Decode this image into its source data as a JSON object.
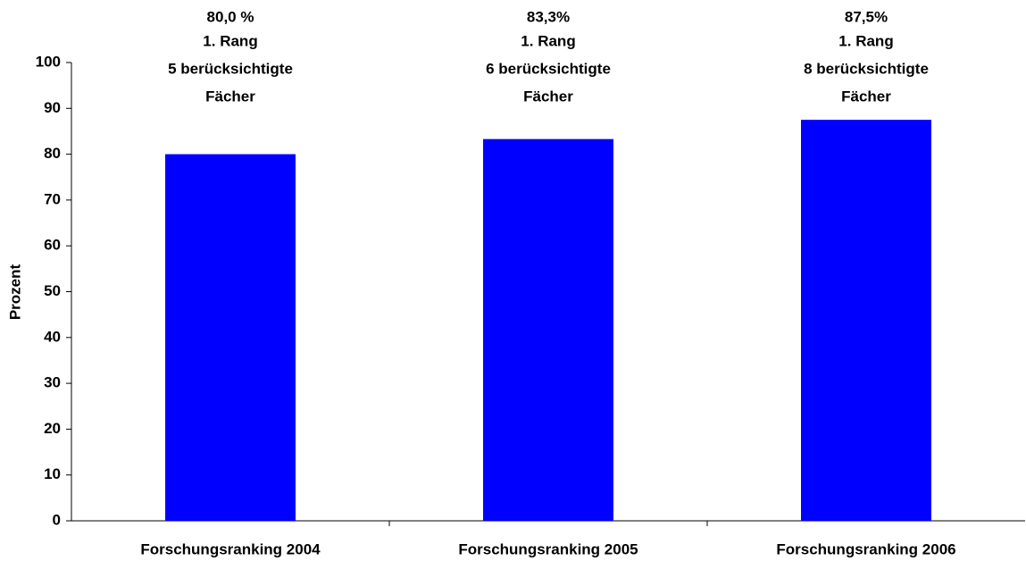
{
  "chart_data": {
    "type": "bar",
    "ylabel": "Prozent",
    "categories": [
      "Forschungsranking 2004",
      "Forschungsranking 2005",
      "Forschungsranking 2006"
    ],
    "values": [
      80.0,
      83.3,
      87.5
    ],
    "value_labels": [
      "80,0 %",
      "83,3%",
      "87,5%"
    ],
    "annotations": [
      [
        "1. Rang",
        "5 berücksichtigte",
        "Fächer"
      ],
      [
        "1. Rang",
        "6 berücksichtigte",
        "Fächer"
      ],
      [
        "1. Rang",
        "8 berücksichtigte",
        "Fächer"
      ]
    ],
    "color": "#0000ff",
    "ylim": [
      0,
      100
    ],
    "yticks": [
      0,
      10,
      20,
      30,
      40,
      50,
      60,
      70,
      80,
      90,
      100
    ],
    "grid": false
  }
}
